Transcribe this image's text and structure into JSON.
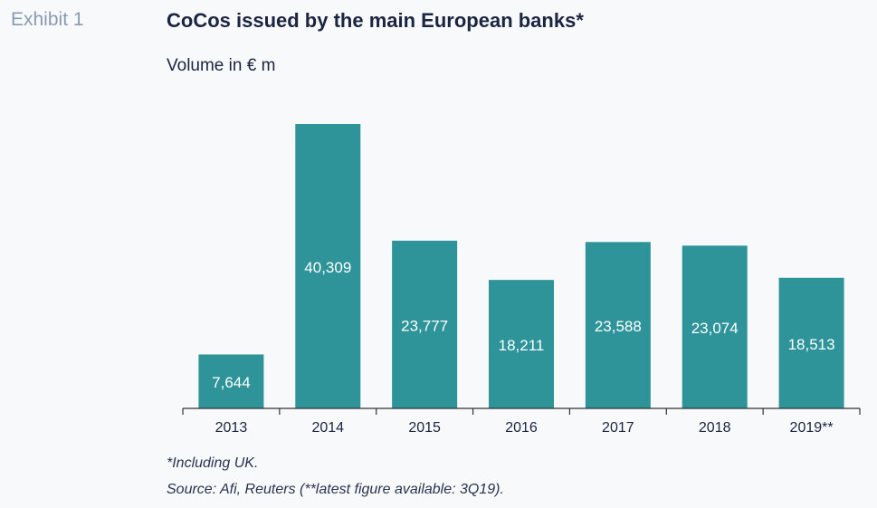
{
  "header": {
    "exhibit_label": "Exhibit 1",
    "title": "CoCos issued by the main European banks*",
    "subtitle": "Volume in € m"
  },
  "notes": {
    "footnote": "*Including UK.",
    "source": "Source: Afi, Reuters (**latest figure available: 3Q19)."
  },
  "colors": {
    "bar": "#2e9499",
    "bar_label": "#ffffff",
    "axis": "#333333",
    "tick_label": "#1b2440"
  },
  "chart_data": {
    "type": "bar",
    "title": "CoCos issued by the main European banks*",
    "ylabel": "Volume in € m",
    "xlabel": "",
    "categories": [
      "2013",
      "2014",
      "2015",
      "2016",
      "2017",
      "2018",
      "2019**"
    ],
    "values": [
      7644,
      40309,
      23777,
      18211,
      23588,
      23074,
      18513
    ],
    "value_labels": [
      "7,644",
      "40,309",
      "23,777",
      "18,211",
      "23,588",
      "23,074",
      "18,513"
    ],
    "ylim": [
      0,
      40309
    ],
    "grid": false,
    "legend": "none"
  }
}
